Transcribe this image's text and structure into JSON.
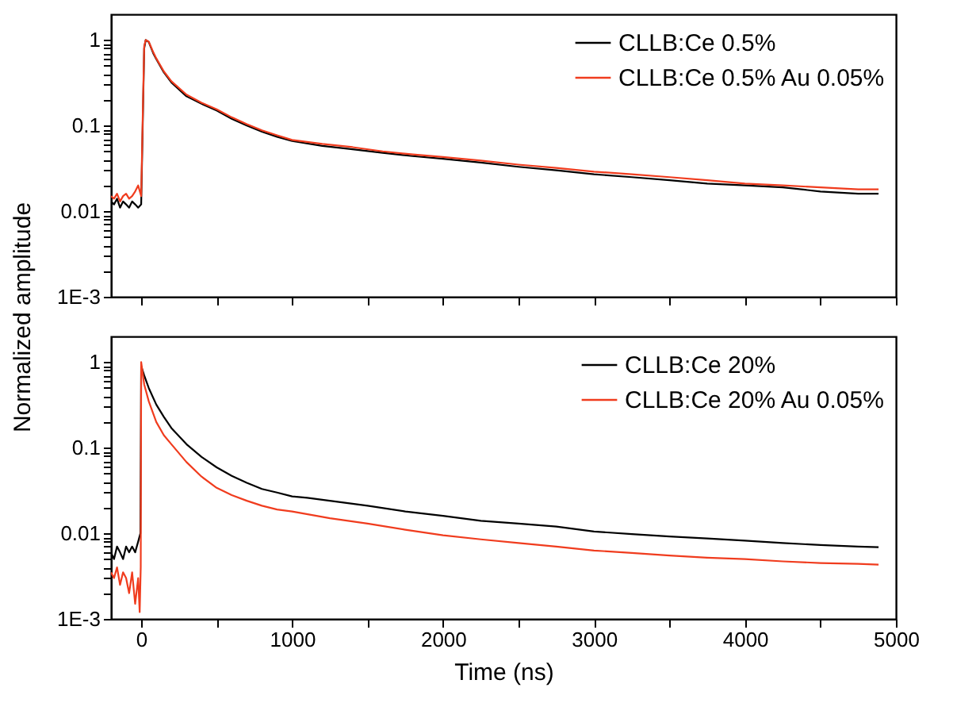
{
  "chart_data": [
    {
      "type": "line",
      "ylabel": "Normalized amplitude",
      "log": "y",
      "grid": false,
      "legend": "top right",
      "marker": "none",
      "line_style": "solid",
      "tick_labels": "y",
      "xlim": [
        -200,
        5000
      ],
      "ylim": [
        0.001,
        2
      ],
      "xticks": [
        0,
        {
          "value": 500,
          "label": null
        },
        1000,
        {
          "value": 1500,
          "label": null
        },
        2000,
        {
          "value": 2500,
          "label": null
        },
        3000,
        {
          "value": 3500,
          "label": null
        },
        4000,
        {
          "value": 4500,
          "label": null
        },
        5000
      ],
      "yticks": [
        {
          "value": 0.001,
          "label": "1E-3"
        },
        {
          "value": 0.002,
          "label": null
        },
        {
          "value": 0.003,
          "label": null
        },
        {
          "value": 0.004,
          "label": null
        },
        {
          "value": 0.005,
          "label": null
        },
        {
          "value": 0.006,
          "label": null
        },
        {
          "value": 0.007,
          "label": null
        },
        {
          "value": 0.008,
          "label": null
        },
        {
          "value": 0.009,
          "label": null
        },
        0.01,
        {
          "value": 0.02,
          "label": null
        },
        {
          "value": 0.03,
          "label": null
        },
        {
          "value": 0.04,
          "label": null
        },
        {
          "value": 0.05,
          "label": null
        },
        {
          "value": 0.06,
          "label": null
        },
        {
          "value": 0.07,
          "label": null
        },
        {
          "value": 0.08,
          "label": null
        },
        {
          "value": 0.09,
          "label": null
        },
        0.1,
        {
          "value": 0.2,
          "label": null
        },
        {
          "value": 0.3,
          "label": null
        },
        {
          "value": 0.4,
          "label": null
        },
        {
          "value": 0.5,
          "label": null
        },
        {
          "value": 0.6,
          "label": null
        },
        {
          "value": 0.7,
          "label": null
        },
        {
          "value": 0.8,
          "label": null
        },
        {
          "value": 0.9,
          "label": null
        },
        1
      ],
      "series": [
        {
          "name": "CLLB:Ce 0.5%",
          "color": "#000000",
          "x": [
            -200,
            -180,
            -160,
            -140,
            -120,
            -100,
            -80,
            -60,
            -40,
            -20,
            0,
            10,
            20,
            30,
            50,
            80,
            100,
            150,
            200,
            300,
            400,
            500,
            600,
            700,
            800,
            900,
            1000,
            1200,
            1400,
            1600,
            1800,
            2000,
            2250,
            2500,
            2750,
            3000,
            3250,
            3500,
            3750,
            4000,
            4250,
            4500,
            4750,
            4885
          ],
          "values": [
            0.013,
            0.012,
            0.014,
            0.011,
            0.013,
            0.012,
            0.011,
            0.013,
            0.012,
            0.011,
            0.012,
            0.1,
            0.8,
            1.0,
            0.95,
            0.7,
            0.6,
            0.42,
            0.32,
            0.22,
            0.18,
            0.15,
            0.12,
            0.1,
            0.085,
            0.074,
            0.066,
            0.058,
            0.053,
            0.048,
            0.044,
            0.041,
            0.037,
            0.033,
            0.03,
            0.027,
            0.025,
            0.023,
            0.021,
            0.02,
            0.019,
            0.017,
            0.016,
            0.016
          ]
        },
        {
          "name": "CLLB:Ce 0.5% Au 0.05%",
          "color": "#f03c1e",
          "x": [
            -200,
            -180,
            -160,
            -140,
            -120,
            -100,
            -80,
            -60,
            -40,
            -20,
            0,
            10,
            20,
            30,
            50,
            80,
            100,
            150,
            200,
            300,
            400,
            500,
            600,
            700,
            800,
            900,
            1000,
            1200,
            1400,
            1600,
            1800,
            2000,
            2250,
            2500,
            2750,
            3000,
            3250,
            3500,
            3750,
            4000,
            4250,
            4500,
            4750,
            4885
          ],
          "values": [
            0.015,
            0.014,
            0.016,
            0.013,
            0.015,
            0.016,
            0.014,
            0.015,
            0.017,
            0.02,
            0.015,
            0.12,
            0.85,
            1.0,
            0.96,
            0.72,
            0.61,
            0.43,
            0.33,
            0.23,
            0.185,
            0.155,
            0.125,
            0.104,
            0.088,
            0.077,
            0.068,
            0.061,
            0.056,
            0.05,
            0.046,
            0.043,
            0.039,
            0.035,
            0.032,
            0.029,
            0.027,
            0.025,
            0.023,
            0.021,
            0.02,
            0.019,
            0.018,
            0.018
          ]
        }
      ]
    },
    {
      "type": "line",
      "xlabel": "Time (ns)",
      "log": "y",
      "grid": false,
      "legend": "top right",
      "marker": "none",
      "line_style": "solid",
      "xlim": [
        -200,
        5000
      ],
      "ylim": [
        0.001,
        2
      ],
      "xticks": [
        0,
        {
          "value": 500,
          "label": null
        },
        1000,
        {
          "value": 1500,
          "label": null
        },
        2000,
        {
          "value": 2500,
          "label": null
        },
        3000,
        {
          "value": 3500,
          "label": null
        },
        4000,
        {
          "value": 4500,
          "label": null
        },
        5000
      ],
      "yticks": [
        {
          "value": 0.001,
          "label": "1E-3"
        },
        {
          "value": 0.002,
          "label": null
        },
        {
          "value": 0.003,
          "label": null
        },
        {
          "value": 0.004,
          "label": null
        },
        {
          "value": 0.005,
          "label": null
        },
        {
          "value": 0.006,
          "label": null
        },
        {
          "value": 0.007,
          "label": null
        },
        {
          "value": 0.008,
          "label": null
        },
        {
          "value": 0.009,
          "label": null
        },
        0.01,
        {
          "value": 0.02,
          "label": null
        },
        {
          "value": 0.03,
          "label": null
        },
        {
          "value": 0.04,
          "label": null
        },
        {
          "value": 0.05,
          "label": null
        },
        {
          "value": 0.06,
          "label": null
        },
        {
          "value": 0.07,
          "label": null
        },
        {
          "value": 0.08,
          "label": null
        },
        {
          "value": 0.09,
          "label": null
        },
        0.1,
        {
          "value": 0.2,
          "label": null
        },
        {
          "value": 0.3,
          "label": null
        },
        {
          "value": 0.4,
          "label": null
        },
        {
          "value": 0.5,
          "label": null
        },
        {
          "value": 0.6,
          "label": null
        },
        {
          "value": 0.7,
          "label": null
        },
        {
          "value": 0.8,
          "label": null
        },
        {
          "value": 0.9,
          "label": null
        },
        1
      ],
      "series": [
        {
          "name": "CLLB:Ce 20%",
          "color": "#000000",
          "x": [
            -200,
            -180,
            -160,
            -140,
            -120,
            -100,
            -80,
            -60,
            -40,
            -20,
            -5,
            0,
            20,
            50,
            100,
            150,
            200,
            300,
            400,
            500,
            600,
            700,
            800,
            900,
            1000,
            1100,
            1250,
            1500,
            1750,
            2000,
            2250,
            2500,
            2750,
            3000,
            3250,
            3500,
            3750,
            4000,
            4250,
            4500,
            4750,
            4885
          ],
          "values": [
            0.006,
            0.005,
            0.007,
            0.006,
            0.005,
            0.007,
            0.006,
            0.007,
            0.006,
            0.008,
            0.01,
            0.9,
            0.7,
            0.5,
            0.32,
            0.23,
            0.17,
            0.11,
            0.078,
            0.059,
            0.047,
            0.039,
            0.033,
            0.03,
            0.027,
            0.026,
            0.024,
            0.021,
            0.018,
            0.016,
            0.014,
            0.013,
            0.012,
            0.0105,
            0.0098,
            0.0092,
            0.0087,
            0.0082,
            0.0077,
            0.0073,
            0.007,
            0.0069
          ]
        },
        {
          "name": "CLLB:Ce 20% Au 0.05%",
          "color": "#f03c1e",
          "x": [
            -200,
            -180,
            -160,
            -140,
            -120,
            -100,
            -80,
            -60,
            -40,
            -20,
            -10,
            -3,
            0,
            20,
            50,
            100,
            150,
            200,
            300,
            400,
            500,
            600,
            700,
            800,
            900,
            1000,
            1250,
            1500,
            1750,
            2000,
            2250,
            2500,
            2750,
            3000,
            3250,
            3500,
            3750,
            4000,
            4250,
            4500,
            4750,
            4885
          ],
          "values": [
            0.0035,
            0.003,
            0.004,
            0.0025,
            0.0035,
            0.003,
            0.002,
            0.0035,
            0.0015,
            0.003,
            0.0012,
            0.004,
            1.0,
            0.55,
            0.35,
            0.2,
            0.14,
            0.11,
            0.068,
            0.046,
            0.034,
            0.028,
            0.024,
            0.021,
            0.019,
            0.018,
            0.015,
            0.013,
            0.011,
            0.0095,
            0.0085,
            0.0077,
            0.007,
            0.0063,
            0.0059,
            0.0055,
            0.0052,
            0.005,
            0.0047,
            0.0045,
            0.0044,
            0.0043
          ]
        }
      ]
    }
  ]
}
